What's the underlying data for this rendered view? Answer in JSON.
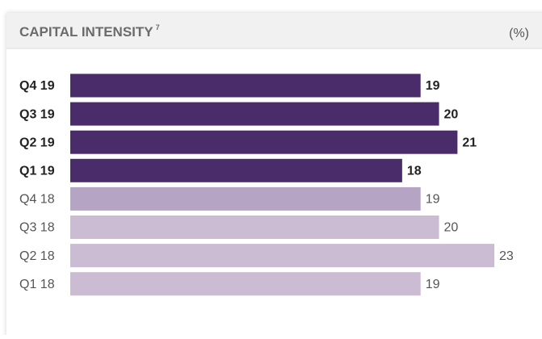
{
  "chart_data": {
    "type": "hbar",
    "title": "CAPITAL INTENSITY",
    "title_note": "7",
    "unit": "(%)",
    "categories": [
      "Q4 19",
      "Q3 19",
      "Q2 19",
      "Q1 19",
      "Q4 18",
      "Q3 18",
      "Q2 18",
      "Q1 18"
    ],
    "values": [
      19,
      20,
      21,
      18,
      19,
      20,
      23,
      19
    ],
    "colors": [
      "#4b2c6a",
      "#4b2c6a",
      "#4b2c6a",
      "#4b2c6a",
      "#b6a4c4",
      "#cbbcd3",
      "#cbbcd3",
      "#cbbcd3"
    ],
    "highlight": [
      true,
      true,
      true,
      true,
      false,
      false,
      false,
      false
    ],
    "xlim": [
      0,
      23
    ]
  }
}
